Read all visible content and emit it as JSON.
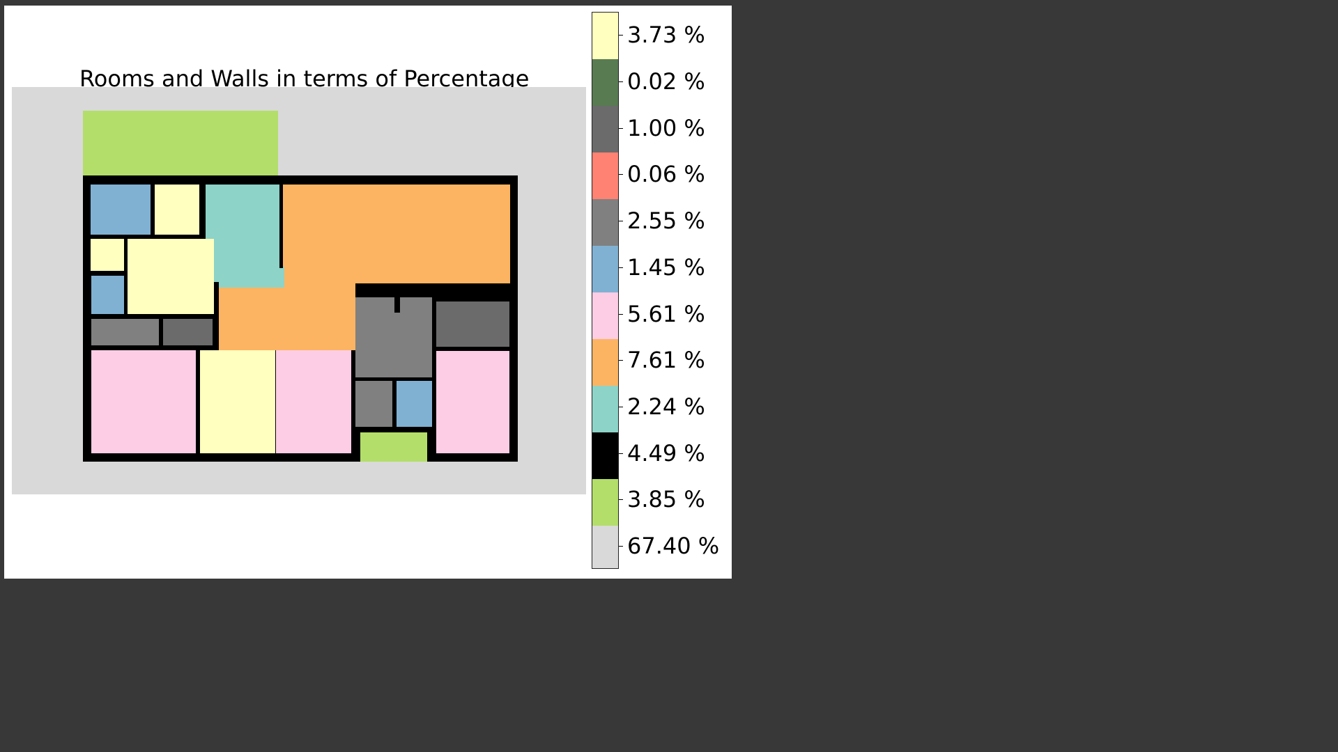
{
  "title": "Rooms and Walls in terms of Percentage",
  "legend": [
    {
      "label": "3.73 %",
      "color": "#ffffbf"
    },
    {
      "label": "0.02 %",
      "color": "#587b52"
    },
    {
      "label": "1.00 %",
      "color": "#6b6b6b"
    },
    {
      "label": "0.06 %",
      "color": "#ff8272"
    },
    {
      "label": "2.55 %",
      "color": "#808080"
    },
    {
      "label": "1.45 %",
      "color": "#80b1d3"
    },
    {
      "label": "5.61 %",
      "color": "#fccde5"
    },
    {
      "label": "7.61 %",
      "color": "#fdb462"
    },
    {
      "label": "2.24 %",
      "color": "#8dd3c7"
    },
    {
      "label": "4.49 %",
      "color": "#000000"
    },
    {
      "label": "3.85 %",
      "color": "#b3de69"
    },
    {
      "label": "67.40 %",
      "color": "#d9d9d9"
    }
  ]
}
